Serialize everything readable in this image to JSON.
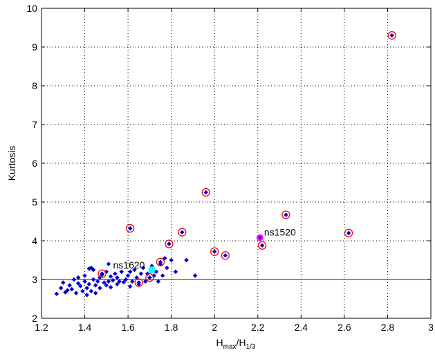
{
  "chart_data": {
    "type": "scatter",
    "title": "",
    "xlabel_main": "H",
    "xlabel_sub1": "max",
    "xlabel_mid": "/H",
    "xlabel_sub2": "1/3",
    "ylabel": "Kurtosis",
    "xlim": [
      1.2,
      3
    ],
    "ylim": [
      2,
      10
    ],
    "xticks": [
      "1.2",
      "1.4",
      "1.6",
      "1.8",
      "2",
      "2.2",
      "2.4",
      "2.6",
      "2.8",
      "3"
    ],
    "yticks": [
      "2",
      "3",
      "4",
      "5",
      "6",
      "7",
      "8",
      "9",
      "10"
    ],
    "grid": true,
    "grid_style": "dotted",
    "reference_line": {
      "y": 3,
      "color": "#ff0000"
    },
    "colors": {
      "points": "#0000cc",
      "circles": "#ff0000",
      "ns1520": "#ff00ff",
      "ns1620": "#00ffff"
    },
    "series": [
      {
        "marker": "diamond",
        "points": [
          [
            1.27,
            2.63
          ],
          [
            1.29,
            2.78
          ],
          [
            1.3,
            2.92
          ],
          [
            1.31,
            2.67
          ],
          [
            1.32,
            2.72
          ],
          [
            1.33,
            2.85
          ],
          [
            1.34,
            2.75
          ],
          [
            1.35,
            3.0
          ],
          [
            1.36,
            2.65
          ],
          [
            1.37,
            2.9
          ],
          [
            1.37,
            3.05
          ],
          [
            1.38,
            2.83
          ],
          [
            1.39,
            2.7
          ],
          [
            1.4,
            2.95
          ],
          [
            1.4,
            3.1
          ],
          [
            1.41,
            2.78
          ],
          [
            1.41,
            2.6
          ],
          [
            1.42,
            3.28
          ],
          [
            1.42,
            2.88
          ],
          [
            1.43,
            3.3
          ],
          [
            1.43,
            2.7
          ],
          [
            1.44,
            3.0
          ],
          [
            1.44,
            3.25
          ],
          [
            1.45,
            2.85
          ],
          [
            1.45,
            2.65
          ],
          [
            1.46,
            2.95
          ],
          [
            1.47,
            3.05
          ],
          [
            1.47,
            2.78
          ],
          [
            1.48,
            3.12
          ],
          [
            1.49,
            2.92
          ],
          [
            1.5,
            2.85
          ],
          [
            1.5,
            3.2
          ],
          [
            1.51,
            2.95
          ],
          [
            1.51,
            3.4
          ],
          [
            1.52,
            2.8
          ],
          [
            1.52,
            3.08
          ],
          [
            1.53,
            2.98
          ],
          [
            1.54,
            3.15
          ],
          [
            1.55,
            2.88
          ],
          [
            1.55,
            3.05
          ],
          [
            1.56,
            2.95
          ],
          [
            1.57,
            3.2
          ],
          [
            1.58,
            2.93
          ],
          [
            1.59,
            3.0
          ],
          [
            1.6,
            3.1
          ],
          [
            1.61,
            2.82
          ],
          [
            1.61,
            3.2
          ],
          [
            1.62,
            2.95
          ],
          [
            1.63,
            3.25
          ],
          [
            1.64,
            3.05
          ],
          [
            1.65,
            2.88
          ],
          [
            1.66,
            3.15
          ],
          [
            1.67,
            3.3
          ],
          [
            1.68,
            2.95
          ],
          [
            1.69,
            3.15
          ],
          [
            1.7,
            3.05
          ],
          [
            1.71,
            3.35
          ],
          [
            1.72,
            3.1
          ],
          [
            1.73,
            3.2
          ],
          [
            1.74,
            2.95
          ],
          [
            1.75,
            3.4
          ],
          [
            1.76,
            3.1
          ],
          [
            1.77,
            3.55
          ],
          [
            1.78,
            3.3
          ],
          [
            1.8,
            3.5
          ],
          [
            1.82,
            3.2
          ],
          [
            1.87,
            3.5
          ],
          [
            1.91,
            3.1
          ]
        ]
      },
      {
        "marker": "circled",
        "points": [
          [
            1.48,
            3.15
          ],
          [
            1.61,
            4.32
          ],
          [
            1.65,
            2.92
          ],
          [
            1.7,
            3.05
          ],
          [
            1.75,
            3.45
          ],
          [
            1.79,
            3.92
          ],
          [
            1.85,
            4.22
          ],
          [
            1.96,
            5.25
          ],
          [
            2.0,
            3.72
          ],
          [
            2.05,
            3.62
          ],
          [
            2.22,
            3.88
          ],
          [
            2.33,
            4.67
          ],
          [
            2.62,
            4.2
          ],
          [
            2.82,
            9.3
          ]
        ]
      }
    ],
    "highlighted": [
      {
        "label": "ns1520",
        "x": 2.21,
        "y": 4.08,
        "color_key": "ns1520"
      },
      {
        "label": "ns1620",
        "x": 1.71,
        "y": 3.25,
        "color_key": "ns1620"
      }
    ]
  }
}
